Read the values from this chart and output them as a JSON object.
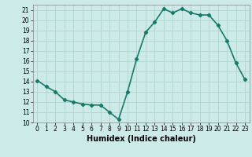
{
  "x": [
    0,
    1,
    2,
    3,
    4,
    5,
    6,
    7,
    8,
    9,
    10,
    11,
    12,
    13,
    14,
    15,
    16,
    17,
    18,
    19,
    20,
    21,
    22,
    23
  ],
  "y": [
    14.1,
    13.5,
    13.0,
    12.2,
    12.0,
    11.8,
    11.7,
    11.7,
    11.0,
    10.3,
    13.0,
    16.2,
    18.8,
    19.8,
    21.1,
    20.7,
    21.1,
    20.7,
    20.5,
    20.5,
    19.5,
    18.0,
    15.8,
    14.2
  ],
  "line_color": "#1a7a6a",
  "marker": "D",
  "marker_size": 2.2,
  "bg_color": "#cceae8",
  "grid_color": "#b0d4d0",
  "xlabel": "Humidex (Indice chaleur)",
  "xlabel_fontsize": 7,
  "ylim": [
    10,
    21.5
  ],
  "xlim": [
    -0.5,
    23.5
  ],
  "yticks": [
    10,
    11,
    12,
    13,
    14,
    15,
    16,
    17,
    18,
    19,
    20,
    21
  ],
  "xticks": [
    0,
    1,
    2,
    3,
    4,
    5,
    6,
    7,
    8,
    9,
    10,
    11,
    12,
    13,
    14,
    15,
    16,
    17,
    18,
    19,
    20,
    21,
    22,
    23
  ],
  "tick_fontsize": 5.5,
  "line_width": 1.2
}
